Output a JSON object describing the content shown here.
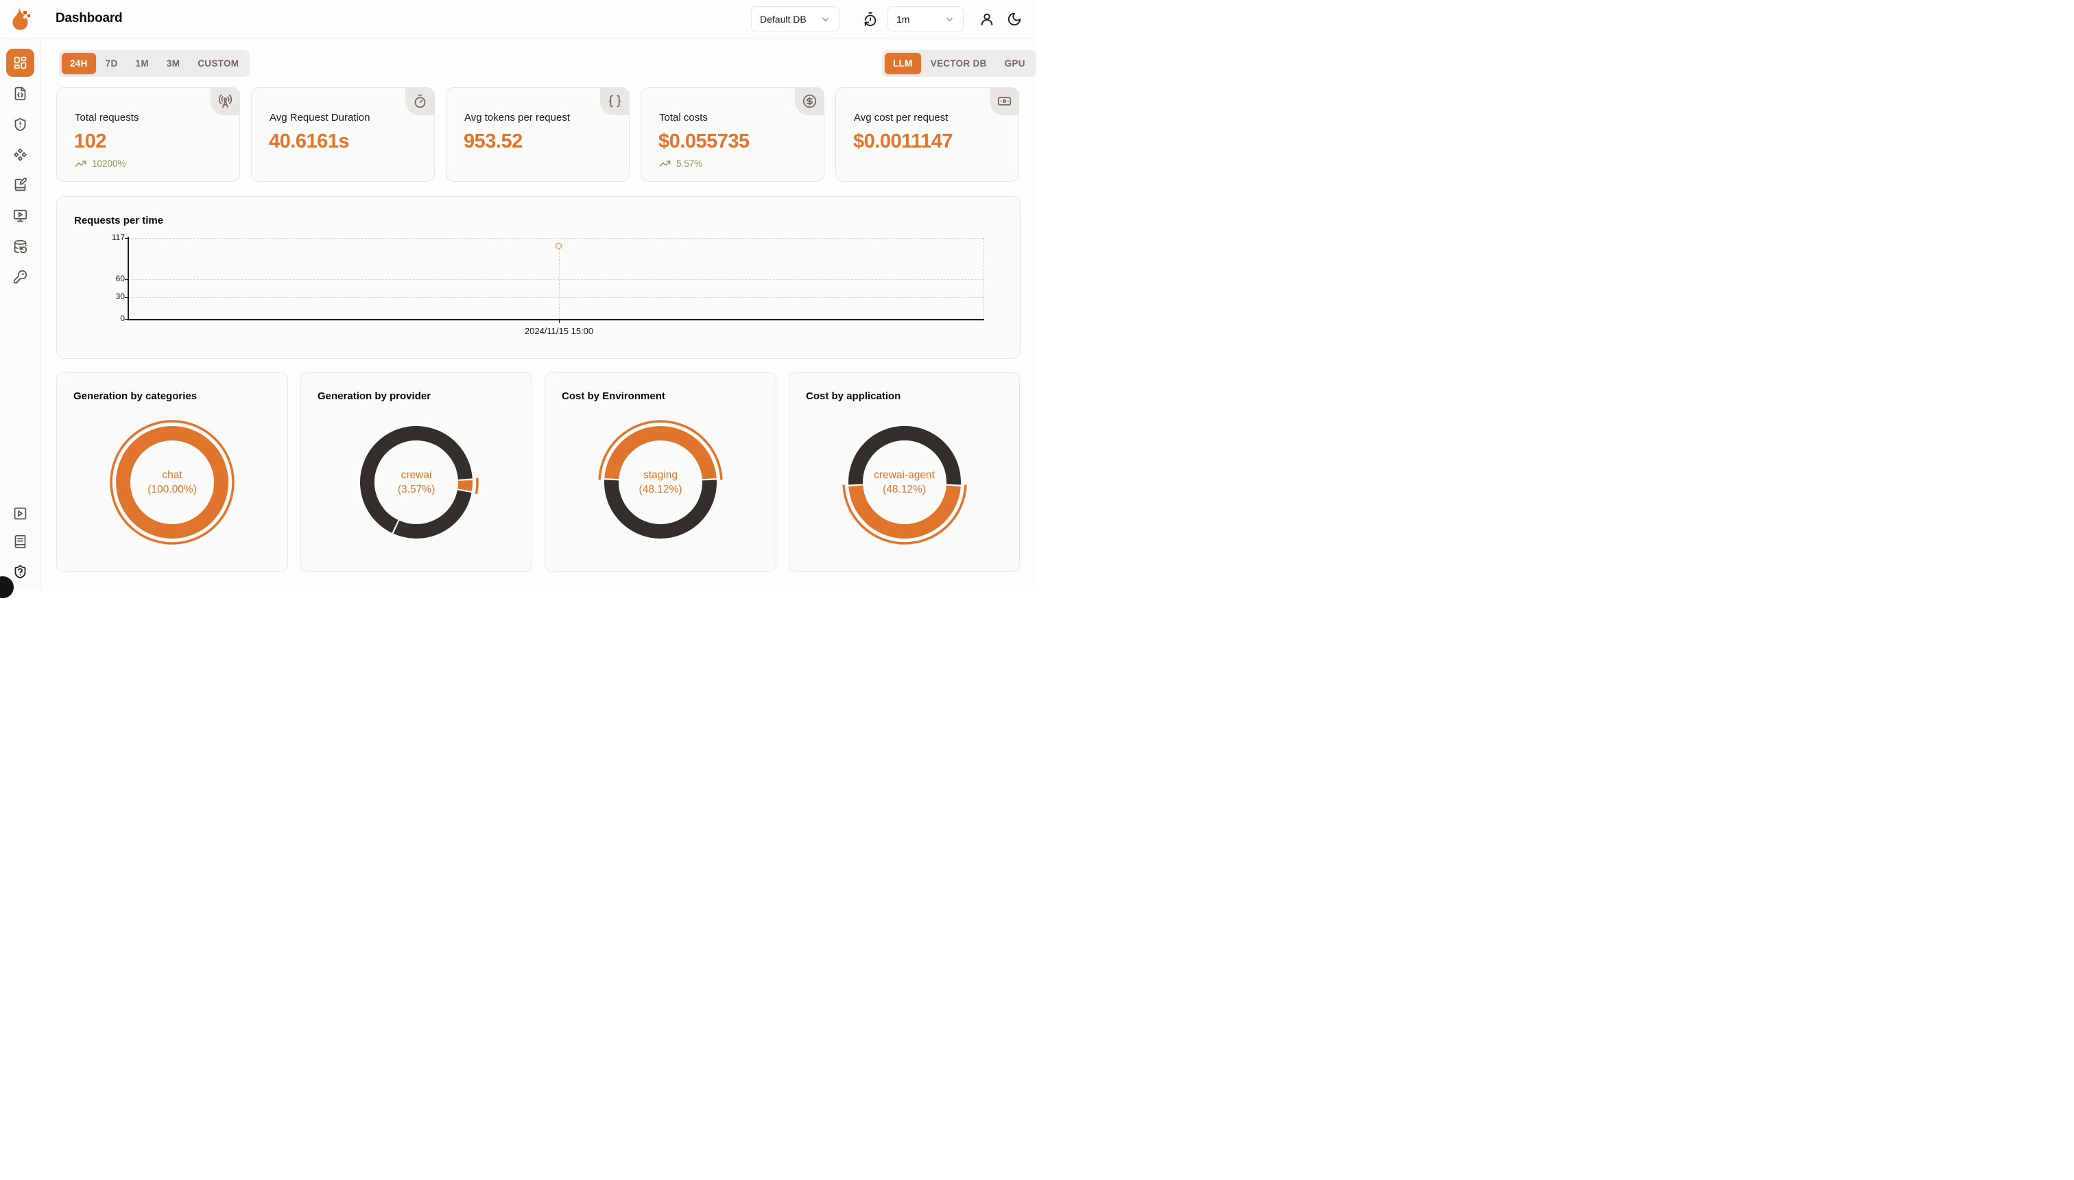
{
  "colors": {
    "accent_orange": "#E0752E",
    "donut_dark": "#33302B",
    "trend_green": "#7FA153"
  },
  "header": {
    "title": "Dashboard",
    "db_selector": {
      "value": "Default DB"
    },
    "refresh_selector": {
      "value": "1m"
    },
    "icons": [
      "timer-reset-icon",
      "user-icon",
      "moon-icon"
    ]
  },
  "sidebar": {
    "top_icons": [
      "layout-dashboard-icon",
      "file-code-icon",
      "shield-alert-icon",
      "component-icon",
      "notebook-pen-icon",
      "monitor-play-icon",
      "database-backup-icon",
      "key-round-icon"
    ],
    "bottom_icons": [
      "square-play-icon",
      "book-text-icon",
      "shield-question-icon"
    ],
    "active_index": 0
  },
  "time_range_tabs": {
    "items": [
      "24H",
      "7D",
      "1M",
      "3M",
      "CUSTOM"
    ],
    "active": "24H"
  },
  "category_tabs": {
    "items": [
      "LLM",
      "VECTOR DB",
      "GPU"
    ],
    "active": "LLM"
  },
  "metric_cards": [
    {
      "label": "Total requests",
      "value": "102",
      "trend": "10200%",
      "icon": "radio-tower-icon"
    },
    {
      "label": "Avg Request Duration",
      "value": "40.6161s",
      "trend": "",
      "icon": "timer-icon"
    },
    {
      "label": "Avg tokens per request",
      "value": "953.52",
      "trend": "",
      "icon": "braces-icon"
    },
    {
      "label": "Total costs",
      "value": "$0.055735",
      "trend": "5.57%",
      "icon": "circle-dollar-sign-icon"
    },
    {
      "label": "Avg cost per request",
      "value": "$0.0011147",
      "trend": "",
      "icon": "banknote-icon"
    }
  ],
  "chart_data": [
    {
      "type": "line",
      "title": "Requests per time",
      "x": [
        "2024/11/15 15:00"
      ],
      "series": [
        {
          "name": "requests",
          "values": [
            102
          ]
        }
      ],
      "yticks": [
        0,
        30,
        60,
        117
      ],
      "ylim": [
        0,
        117
      ],
      "grid": "dashed-horizontal",
      "point_style": "open-circle-orange"
    },
    {
      "type": "donut",
      "title": "Generation by categories",
      "start_angle": 0,
      "slices": [
        {
          "label": "chat",
          "pct": 100.0,
          "color": "#E0752E"
        }
      ],
      "center_label": "chat",
      "center_pct": "(100.00%)"
    },
    {
      "type": "donut",
      "title": "Generation by provider",
      "start_angle": 87,
      "slices": [
        {
          "label": "crewai",
          "pct": 3.57,
          "color": "#E0752E"
        },
        {
          "label": "",
          "pct": 29.17,
          "color": "#33302B"
        },
        {
          "label": "",
          "pct": 67.26,
          "color": "#33302B"
        }
      ],
      "center_label": "crewai",
      "center_pct": "(3.57%)"
    },
    {
      "type": "donut",
      "title": "Cost by Environment",
      "start_angle": 273.4,
      "slices": [
        {
          "label": "staging",
          "pct": 48.12,
          "color": "#E0752E"
        },
        {
          "label": "",
          "pct": 51.88,
          "color": "#33302B"
        }
      ],
      "center_label": "staging",
      "center_pct": "(48.12%)"
    },
    {
      "type": "donut",
      "title": "Cost by application",
      "start_angle": 93.4,
      "slices": [
        {
          "label": "crewai-agent",
          "pct": 48.12,
          "color": "#E0752E"
        },
        {
          "label": "",
          "pct": 51.88,
          "color": "#33302B"
        }
      ],
      "center_label": "crewai-agent",
      "center_pct": "(48.12%)"
    }
  ]
}
